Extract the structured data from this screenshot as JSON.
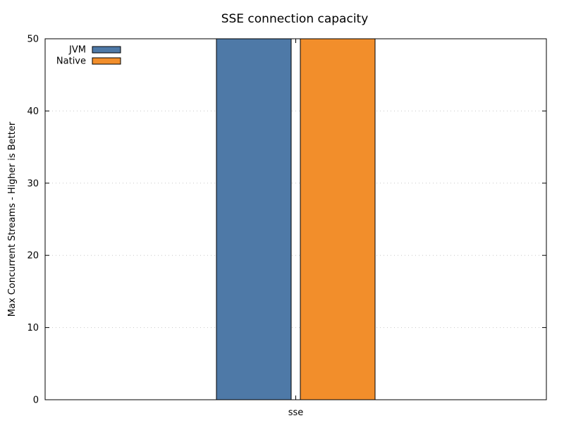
{
  "chart_data": {
    "type": "bar",
    "title": "SSE connection capacity",
    "xlabel": "",
    "ylabel": "Max Concurrent Streams - Higher is Better",
    "categories": [
      "sse"
    ],
    "series": [
      {
        "name": "JVM",
        "values": [
          50
        ],
        "color": "#4e79a7"
      },
      {
        "name": "Native",
        "values": [
          50
        ],
        "color": "#f28e2b"
      }
    ],
    "ylim": [
      0,
      50
    ],
    "yticks": [
      0,
      10,
      20,
      30,
      40,
      50
    ],
    "grid": true,
    "legend_position": "top-left"
  }
}
